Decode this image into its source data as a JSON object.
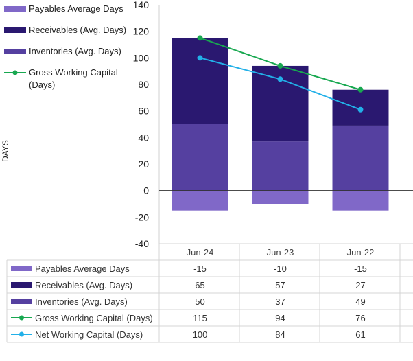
{
  "chart_data": {
    "type": "bar",
    "categories": [
      "Jun-24",
      "Jun-23",
      "Jun-22"
    ],
    "ylabel": "DAYS",
    "ylim": [
      -40,
      140
    ],
    "yticks": [
      140,
      120,
      100,
      80,
      60,
      40,
      20,
      0,
      -20,
      -40
    ],
    "series": [
      {
        "name": "Payables Average Days",
        "kind": "bar",
        "color": "#8068c8",
        "values": [
          -15,
          -10,
          -15
        ]
      },
      {
        "name": "Receivables (Avg. Days)",
        "kind": "bar",
        "color": "#2a1870",
        "values": [
          65,
          57,
          27
        ]
      },
      {
        "name": "Inventories (Avg. Days)",
        "kind": "bar",
        "color": "#5540a0",
        "values": [
          50,
          37,
          49
        ]
      },
      {
        "name": "Gross Working Capital (Days)",
        "kind": "line",
        "color": "#18a850",
        "values": [
          115,
          94,
          76
        ]
      },
      {
        "name": "Net Working Capital (Days)",
        "kind": "line",
        "color": "#22b0e8",
        "values": [
          100,
          84,
          61
        ]
      }
    ],
    "legend_position": "left",
    "grid": false
  },
  "legend": [
    {
      "label": "Payables Average Days"
    },
    {
      "label": "Receivables (Avg. Days)"
    },
    {
      "label": "Inventories (Avg. Days)"
    },
    {
      "label": "Gross Working Capital\n(Days)"
    }
  ]
}
